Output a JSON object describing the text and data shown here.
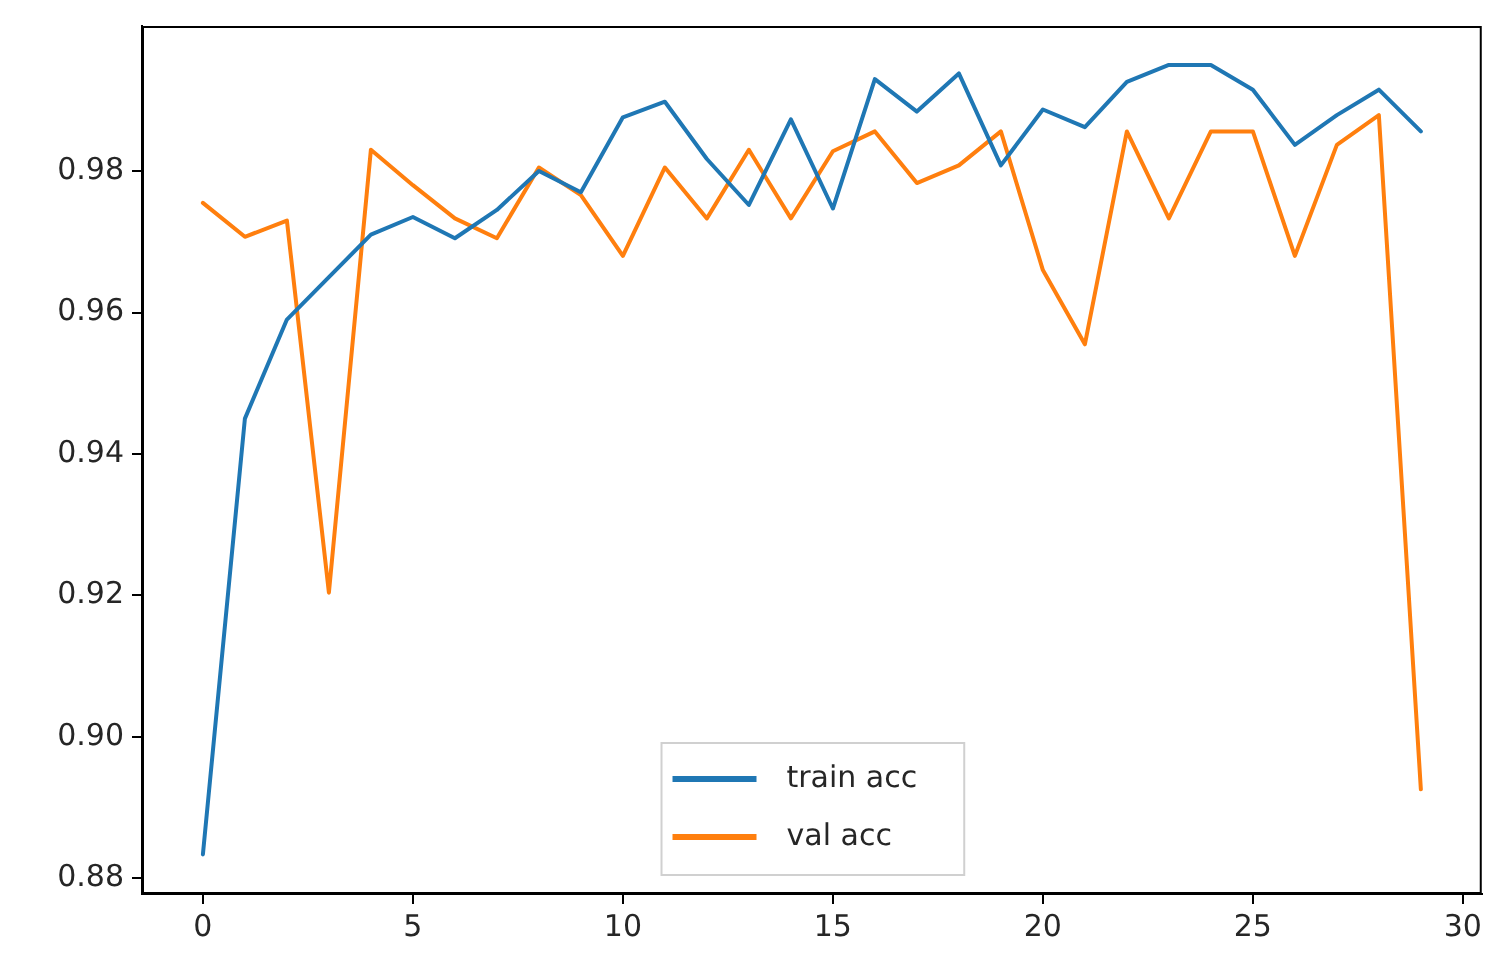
{
  "chart_data": {
    "type": "line",
    "x": [
      0,
      1,
      2,
      3,
      4,
      5,
      6,
      7,
      8,
      9,
      10,
      11,
      12,
      13,
      14,
      15,
      16,
      17,
      18,
      19,
      20,
      21,
      22,
      23,
      24,
      25,
      26,
      27,
      28,
      29
    ],
    "series": [
      {
        "name": "train acc",
        "color": "#1f77b4",
        "values": [
          0.8834,
          0.945,
          0.959,
          0.965,
          0.971,
          0.9735,
          0.9705,
          0.9745,
          0.98,
          0.977,
          0.9876,
          0.9898,
          0.9817,
          0.9752,
          0.9873,
          0.9747,
          0.993,
          0.9884,
          0.9938,
          0.9808,
          0.9887,
          0.9862,
          0.9926,
          0.995,
          0.995,
          0.9915,
          0.9837,
          0.9879,
          0.9915,
          0.9856
        ]
      },
      {
        "name": "val acc",
        "color": "#ff7f0e",
        "values": [
          0.9755,
          0.9707,
          0.973,
          0.9204,
          0.983,
          0.978,
          0.9733,
          0.9705,
          0.9805,
          0.9766,
          0.968,
          0.9805,
          0.9733,
          0.983,
          0.9733,
          0.9828,
          0.9856,
          0.9783,
          0.9808,
          0.9856,
          0.966,
          0.9555,
          0.9856,
          0.9733,
          0.9856,
          0.9856,
          0.968,
          0.9837,
          0.9879,
          0.8926
        ]
      }
    ],
    "xlim": [
      -1.45,
      30.45
    ],
    "xticks": [
      0,
      5,
      10,
      15,
      20,
      25,
      30
    ],
    "ylim": [
      0.8778,
      1.0005
    ],
    "yticks": [
      {
        "value": 0.88,
        "label": "0.88"
      },
      {
        "value": 0.9,
        "label": "0.90"
      },
      {
        "value": 0.92,
        "label": "0.92"
      },
      {
        "value": 0.94,
        "label": "0.94"
      },
      {
        "value": 0.96,
        "label": "0.96"
      },
      {
        "value": 0.98,
        "label": "0.98"
      }
    ],
    "grid": false,
    "legend": "bottom",
    "marker": "none",
    "line_style": "solid"
  }
}
